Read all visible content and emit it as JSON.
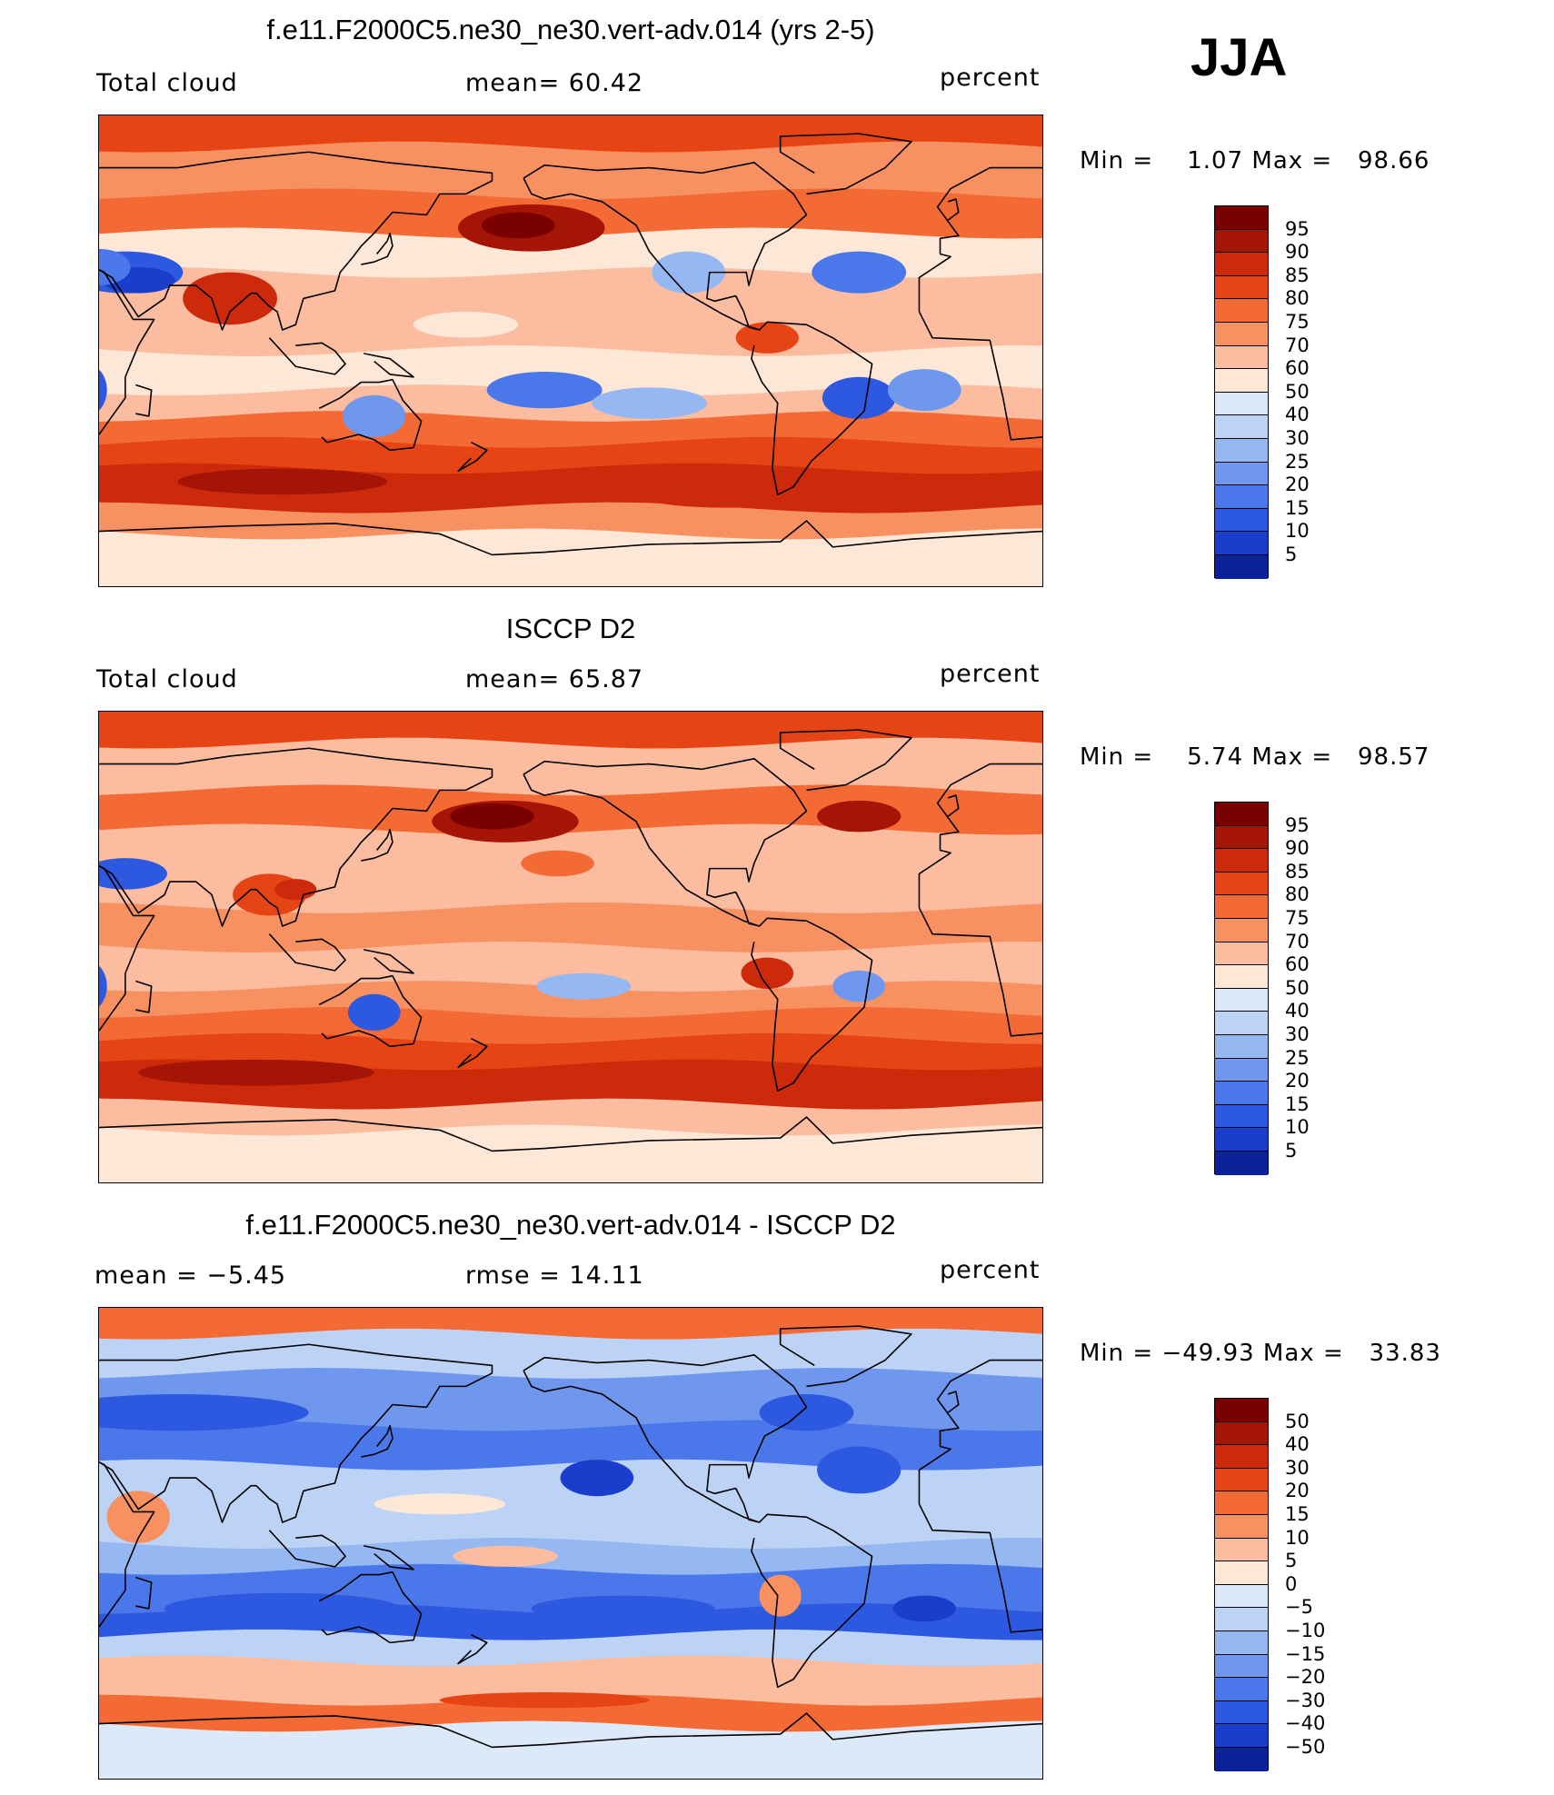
{
  "season": "JJA",
  "palette": {
    "reds": [
      "#7a0000",
      "#a51505",
      "#cc2a0a",
      "#e64414",
      "#f36a35",
      "#f89162",
      "#fcbca0",
      "#fde8d8"
    ],
    "blues": [
      "#dce9f8",
      "#bdd3f5",
      "#95b8f2",
      "#6f97ee",
      "#4a78ea",
      "#2d58e0",
      "#1a3ecc",
      "#0b2399",
      "#051670"
    ],
    "land_line": "#000000"
  },
  "panels": [
    {
      "title": "f.e11.F2000C5.ne30_ne30.vert-adv.014 (yrs 2-5)",
      "left_label": "Total cloud",
      "center_label": "mean=   60.42",
      "right_label": "percent",
      "min_max": "Min =    1.07 Max =   98.66",
      "colorbar_levels": [
        "95",
        "90",
        "85",
        "80",
        "75",
        "70",
        "60",
        "50",
        "40",
        "30",
        "25",
        "20",
        "15",
        "10",
        "5"
      ],
      "map_character": "model"
    },
    {
      "title": "ISCCP D2",
      "left_label": "Total cloud",
      "center_label": "mean=   65.87",
      "right_label": "percent",
      "min_max": "Min =    5.74 Max =   98.57",
      "colorbar_levels": [
        "95",
        "90",
        "85",
        "80",
        "75",
        "70",
        "60",
        "50",
        "40",
        "30",
        "25",
        "20",
        "15",
        "10",
        "5"
      ],
      "map_character": "obs"
    },
    {
      "title": "f.e11.F2000C5.ne30_ne30.vert-adv.014 - ISCCP D2",
      "left_label": "mean =   −5.45",
      "center_label": "rmse =   14.11",
      "right_label": "percent",
      "min_max": "Min = −49.93 Max =   33.83",
      "colorbar_levels": [
        "50",
        "40",
        "30",
        "20",
        "15",
        "10",
        "5",
        "0",
        "−5",
        "−10",
        "−15",
        "−20",
        "−30",
        "−40",
        "−50"
      ],
      "map_character": "diff"
    }
  ]
}
